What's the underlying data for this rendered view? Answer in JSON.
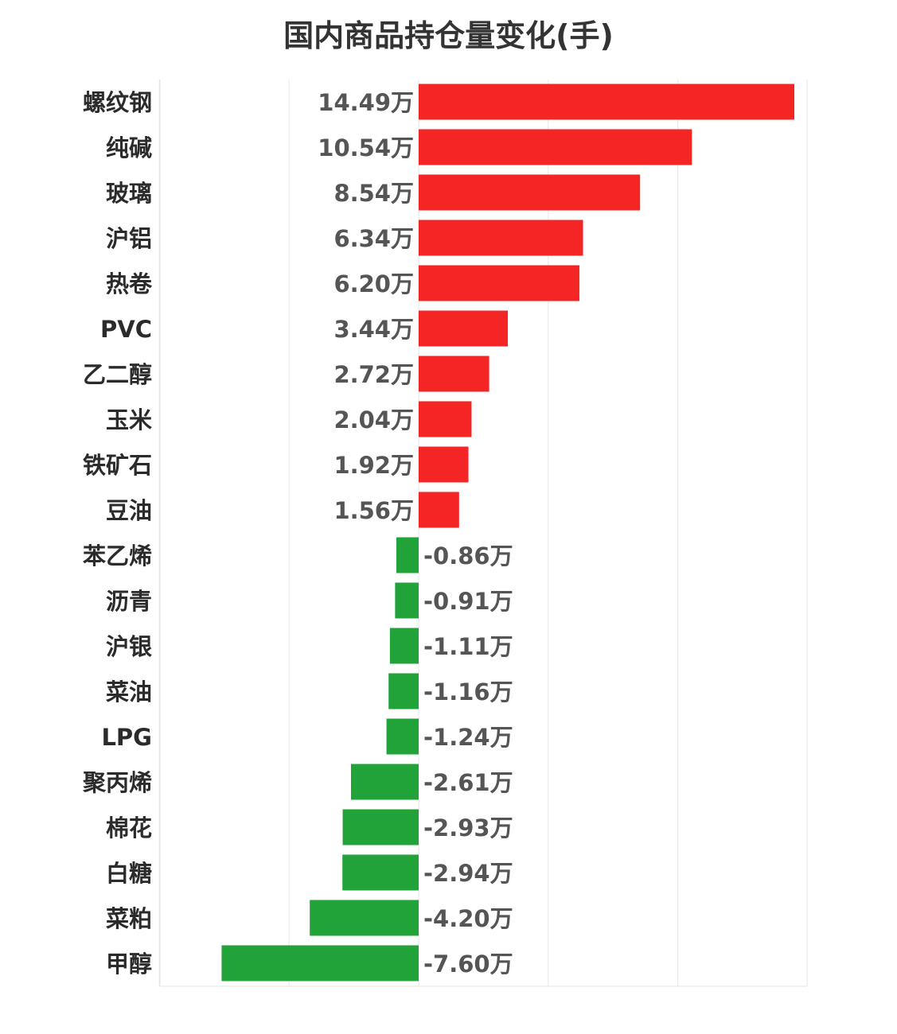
{
  "chart_data": {
    "type": "bar",
    "orientation": "horizontal",
    "title": "国内商品持仓量变化(手)",
    "unit_suffix": "万",
    "grid": true,
    "xlim": [
      -15,
      10
    ],
    "categories": [
      "螺纹钢",
      "纯碱",
      "玻璃",
      "沪铝",
      "热卷",
      "PVC",
      "乙二醇",
      "玉米",
      "铁矿石",
      "豆油",
      "苯乙烯",
      "沥青",
      "沪银",
      "菜油",
      "LPG",
      "聚丙烯",
      "棉花",
      "白糖",
      "菜粕",
      "甲醇"
    ],
    "values": [
      14.49,
      10.54,
      8.54,
      6.34,
      6.2,
      3.44,
      2.72,
      2.04,
      1.92,
      1.56,
      -0.86,
      -0.91,
      -1.11,
      -1.16,
      -1.24,
      -2.61,
      -2.93,
      -2.94,
      -4.2,
      -7.6
    ],
    "data_labels": [
      "14.49万",
      "10.54万",
      "8.54万",
      "6.34万",
      "6.20万",
      "3.44万",
      "2.72万",
      "2.04万",
      "1.92万",
      "1.56万",
      "-0.86万",
      "-0.91万",
      "-1.11万",
      "-1.16万",
      "-1.24万",
      "-2.61万",
      "-2.93万",
      "-2.94万",
      "-4.20万",
      "-7.60万"
    ],
    "colors": {
      "positive": "#f42525",
      "negative": "#21a33a",
      "grid": "#e6e6e6"
    }
  }
}
